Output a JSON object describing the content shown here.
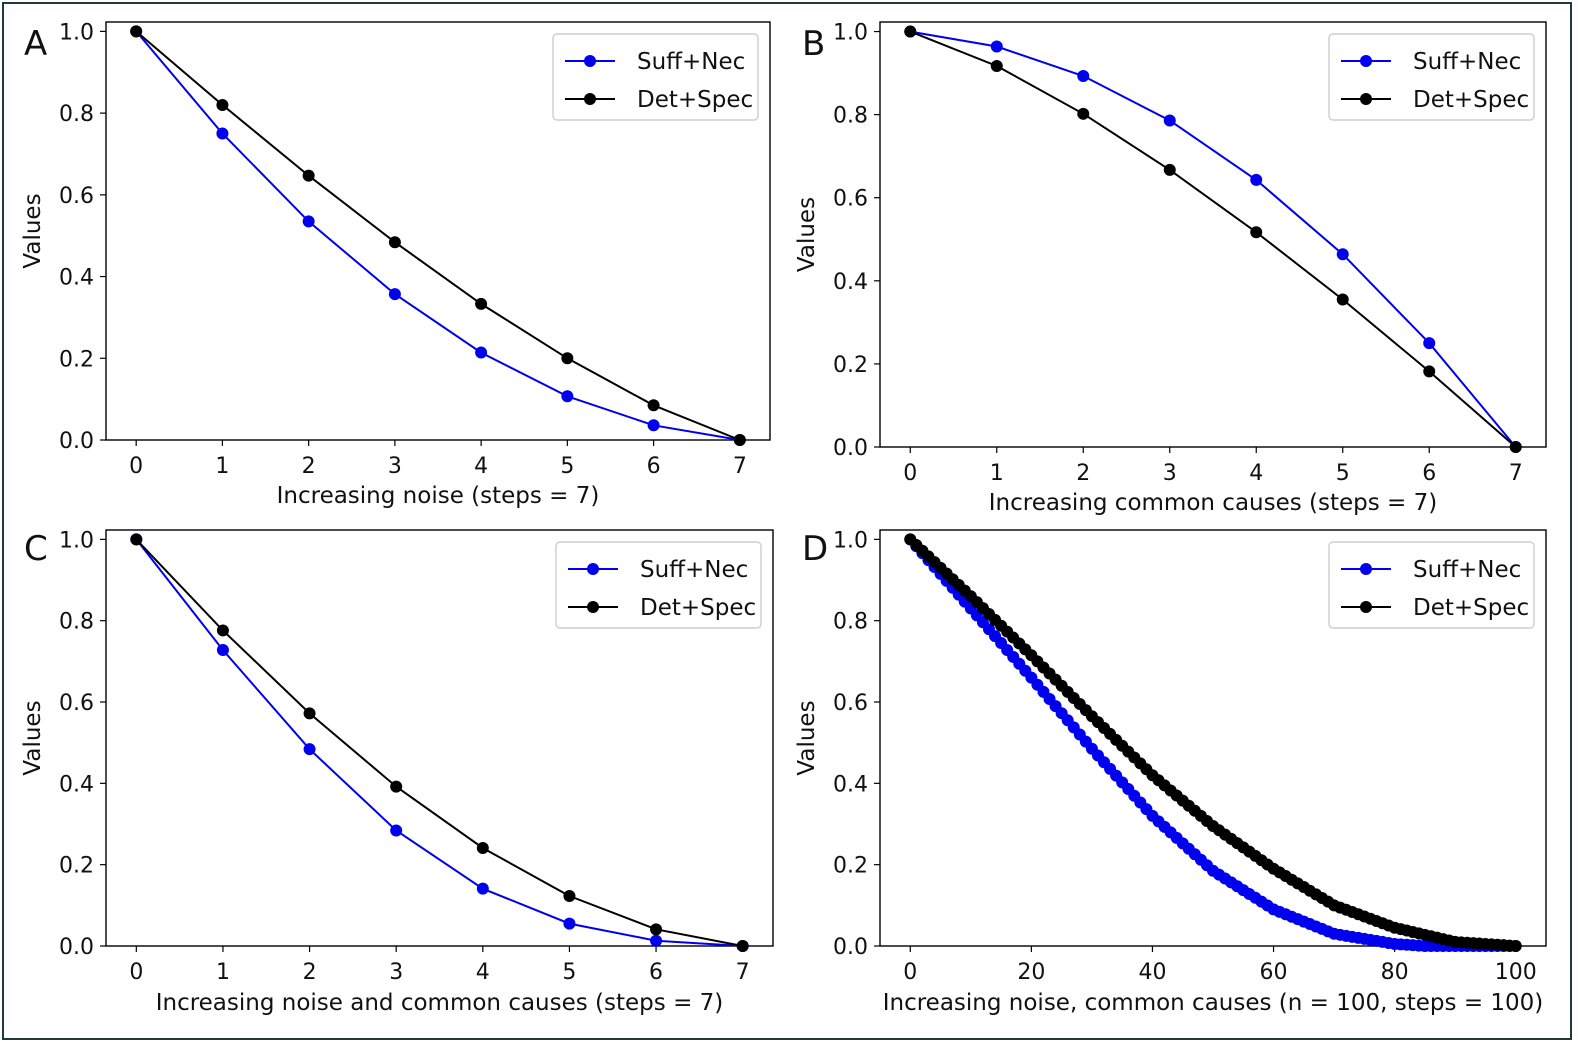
{
  "chart_data": [
    {
      "type": "line",
      "panel_label": "A",
      "xlabel": "Increasing noise (steps = 7)",
      "ylabel": "Values",
      "xlim": [
        0,
        7
      ],
      "ylim": [
        0,
        1
      ],
      "xticks": [
        "0",
        "1",
        "2",
        "3",
        "4",
        "5",
        "6",
        "7"
      ],
      "yticks": [
        "0.0",
        "0.2",
        "0.4",
        "0.6",
        "0.8",
        "1.0"
      ],
      "x": [
        0,
        1,
        2,
        3,
        4,
        5,
        6,
        7
      ],
      "series": [
        {
          "name": "Suff+Nec",
          "color": "#0000ee",
          "values": [
            1.0,
            0.75,
            0.535,
            0.357,
            0.214,
            0.107,
            0.036,
            0.0
          ]
        },
        {
          "name": "Det+Spec",
          "color": "#000000",
          "values": [
            1.0,
            0.82,
            0.647,
            0.484,
            0.333,
            0.2,
            0.085,
            0.0
          ]
        }
      ],
      "legend": "top-right"
    },
    {
      "type": "line",
      "panel_label": "B",
      "xlabel": "Increasing common causes (steps = 7)",
      "ylabel": "Values",
      "xlim": [
        0,
        7
      ],
      "ylim": [
        0,
        1
      ],
      "xticks": [
        "0",
        "1",
        "2",
        "3",
        "4",
        "5",
        "6",
        "7"
      ],
      "yticks": [
        "0.0",
        "0.2",
        "0.4",
        "0.6",
        "0.8",
        "1.0"
      ],
      "x": [
        0,
        1,
        2,
        3,
        4,
        5,
        6,
        7
      ],
      "series": [
        {
          "name": "Suff+Nec",
          "color": "#0000ee",
          "values": [
            1.0,
            0.964,
            0.893,
            0.786,
            0.643,
            0.464,
            0.25,
            0.0
          ]
        },
        {
          "name": "Det+Spec",
          "color": "#000000",
          "values": [
            1.0,
            0.917,
            0.802,
            0.667,
            0.517,
            0.355,
            0.182,
            0.0
          ]
        }
      ],
      "legend": "top-right"
    },
    {
      "type": "line",
      "panel_label": "C",
      "xlabel": "Increasing noise and common causes (steps = 7)",
      "ylabel": "Values",
      "xlim": [
        0,
        7
      ],
      "ylim": [
        0,
        1
      ],
      "xticks": [
        "0",
        "1",
        "2",
        "3",
        "4",
        "5",
        "6",
        "7"
      ],
      "yticks": [
        "0.0",
        "0.2",
        "0.4",
        "0.6",
        "0.8",
        "1.0"
      ],
      "x": [
        0,
        1,
        2,
        3,
        4,
        5,
        6,
        7
      ],
      "series": [
        {
          "name": "Suff+Nec",
          "color": "#0000ee",
          "values": [
            1.0,
            0.728,
            0.484,
            0.284,
            0.141,
            0.055,
            0.013,
            0.0
          ]
        },
        {
          "name": "Det+Spec",
          "color": "#000000",
          "values": [
            1.0,
            0.776,
            0.572,
            0.392,
            0.241,
            0.123,
            0.041,
            0.0
          ]
        }
      ],
      "legend": "top-right"
    },
    {
      "type": "line",
      "panel_label": "D",
      "xlabel": "Increasing noise, common causes (n = 100, steps = 100)",
      "ylabel": "Values",
      "xlim": [
        0,
        100
      ],
      "ylim": [
        0,
        1
      ],
      "xticks": [
        "0",
        "20",
        "40",
        "60",
        "80",
        "100"
      ],
      "yticks": [
        "0.0",
        "0.2",
        "0.4",
        "0.6",
        "0.8",
        "1.0"
      ],
      "x_range": {
        "start": 0,
        "end": 100,
        "step": 1
      },
      "series": [
        {
          "name": "Suff+Nec",
          "color": "#0000ee",
          "values_at": {
            "x": [
              0,
              10,
              20,
              30,
              40,
              50,
              60,
              70,
              80,
              85,
              90,
              100
            ],
            "y": [
              1.0,
              0.83,
              0.66,
              0.485,
              0.32,
              0.185,
              0.09,
              0.03,
              0.005,
              0.0,
              0.0,
              0.0
            ]
          }
        },
        {
          "name": "Det+Spec",
          "color": "#000000",
          "values_at": {
            "x": [
              0,
              10,
              20,
              30,
              40,
              50,
              60,
              70,
              80,
              90,
              100
            ],
            "y": [
              1.0,
              0.86,
              0.715,
              0.565,
              0.42,
              0.295,
              0.19,
              0.1,
              0.045,
              0.01,
              0.0
            ]
          }
        }
      ],
      "legend": "top-right"
    }
  ]
}
